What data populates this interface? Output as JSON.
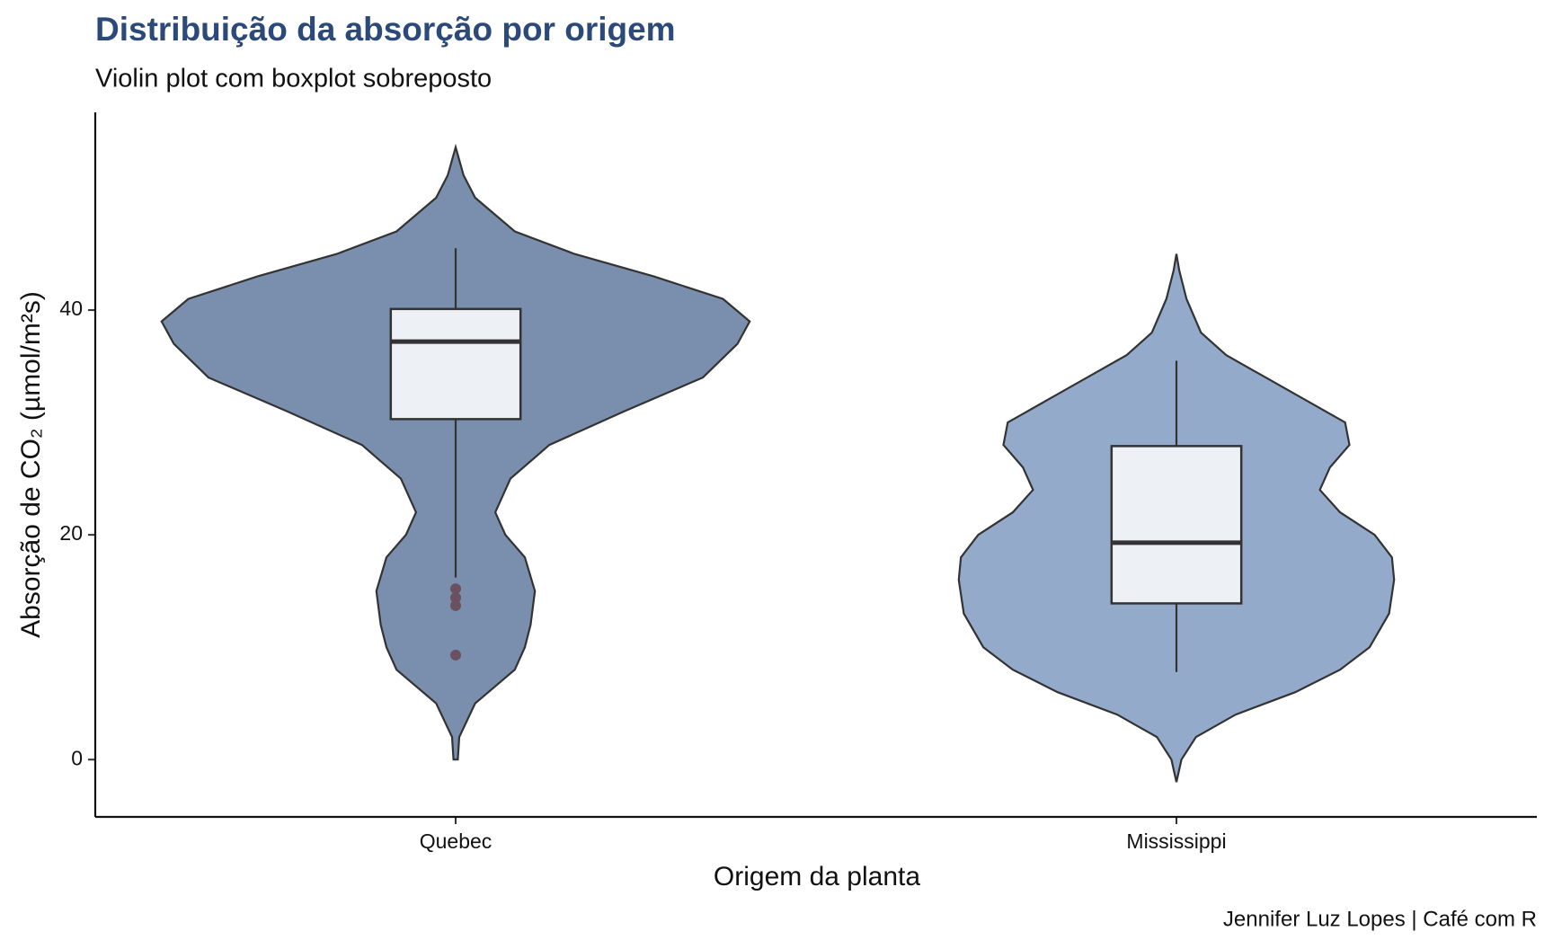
{
  "chart_data": {
    "type": "violin",
    "title": "Distribuição da absorção por origem",
    "subtitle": "Violin plot com boxplot sobreposto",
    "x_label": "Origem da planta",
    "y_label": "Absorção de CO₂ (µmol/m²s)",
    "caption": "Jennifer Luz Lopes | Café com R",
    "categories": [
      "Quebec",
      "Mississippi"
    ],
    "ylim": [
      -5.1,
      57.6
    ],
    "yticks": [
      0,
      20,
      40
    ],
    "box_color": "#edf0f5",
    "outline_color": "#333333",
    "outlier_color": "#6b5060",
    "violins": [
      {
        "color": "#7a8fad",
        "whisker_low": 16.2,
        "q1": 30.3,
        "median": 37.2,
        "q3": 40.1,
        "whisker_high": 45.5,
        "outliers": [
          15.2,
          14.4,
          13.7,
          9.3
        ],
        "density_y": [
          0,
          2,
          5,
          8,
          10,
          12,
          15,
          18,
          20,
          22,
          25,
          28,
          31,
          34,
          37,
          39,
          41,
          43,
          45,
          47,
          50,
          52,
          54.5
        ],
        "density_width": [
          0.003,
          0.005,
          0.027,
          0.082,
          0.096,
          0.104,
          0.11,
          0.096,
          0.069,
          0.055,
          0.076,
          0.13,
          0.234,
          0.343,
          0.391,
          0.408,
          0.371,
          0.275,
          0.165,
          0.082,
          0.027,
          0.011,
          0
        ]
      },
      {
        "color": "#94aacb",
        "whisker_low": 7.8,
        "q1": 13.9,
        "median": 19.3,
        "q3": 27.9,
        "whisker_high": 35.5,
        "outliers": [],
        "density_y": [
          -2,
          0,
          2,
          4,
          6,
          8,
          10,
          13,
          16,
          18,
          20,
          22,
          24,
          26,
          28,
          30,
          32,
          34,
          36,
          38,
          41,
          43.5,
          45
        ],
        "density_width": [
          0,
          0.007,
          0.027,
          0.082,
          0.165,
          0.227,
          0.268,
          0.295,
          0.302,
          0.299,
          0.275,
          0.227,
          0.199,
          0.213,
          0.24,
          0.234,
          0.179,
          0.124,
          0.069,
          0.034,
          0.014,
          0.004,
          0
        ]
      }
    ]
  }
}
